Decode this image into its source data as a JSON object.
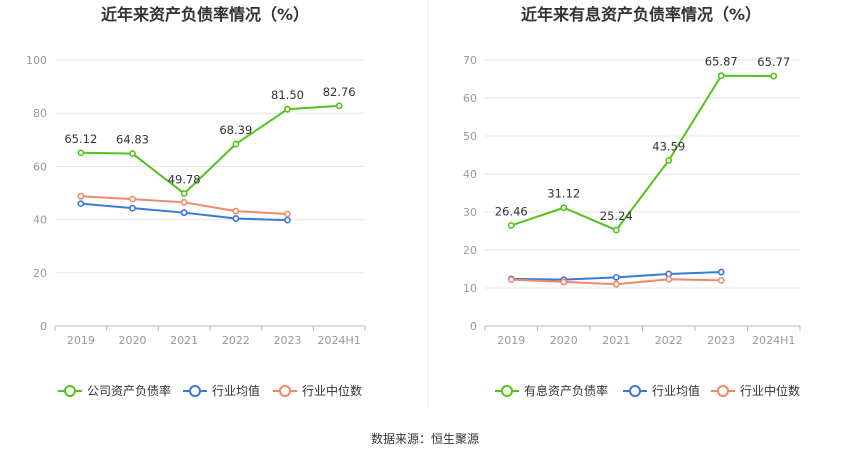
{
  "chart_data": [
    {
      "type": "line",
      "title": "近年来资产负债率情况（%）",
      "categories": [
        "2019",
        "2020",
        "2021",
        "2022",
        "2023",
        "2024H1"
      ],
      "ylim": [
        0,
        100
      ],
      "yticks": [
        "0",
        "20",
        "40",
        "60",
        "80",
        "100"
      ],
      "grid": true,
      "legend_position": "bottom",
      "series": [
        {
          "name": "公司资产负债率",
          "color": "#52c41a",
          "values": [
            65.12,
            64.83,
            49.78,
            68.39,
            81.5,
            82.76
          ],
          "labels": [
            "65.12",
            "64.83",
            "49.78",
            "68.39",
            "81.50",
            "82.76"
          ]
        },
        {
          "name": "行业均值",
          "color": "#3a78d8",
          "values": [
            46.0,
            44.3,
            42.6,
            40.4,
            39.8,
            null
          ]
        },
        {
          "name": "行业中位数",
          "color": "#f0896a",
          "values": [
            48.8,
            47.7,
            46.5,
            43.2,
            42.1,
            null
          ]
        }
      ]
    },
    {
      "type": "line",
      "title": "近年来有息资产负债率情况（%）",
      "categories": [
        "2019",
        "2020",
        "2021",
        "2022",
        "2023",
        "2024H1"
      ],
      "ylim": [
        0,
        70
      ],
      "yticks": [
        "0",
        "10",
        "20",
        "30",
        "40",
        "50",
        "60",
        "70"
      ],
      "grid": true,
      "legend_position": "bottom",
      "series": [
        {
          "name": "有息资产负债率",
          "color": "#52c41a",
          "values": [
            26.46,
            31.12,
            25.24,
            43.59,
            65.87,
            65.77
          ],
          "labels": [
            "26.46",
            "31.12",
            "25.24",
            "43.59",
            "65.87",
            "65.77"
          ]
        },
        {
          "name": "行业均值",
          "color": "#3a78d8",
          "values": [
            12.4,
            12.2,
            12.8,
            13.7,
            14.2,
            null
          ]
        },
        {
          "name": "行业中位数",
          "color": "#f0896a",
          "values": [
            12.2,
            11.6,
            11.0,
            12.3,
            12.0,
            null
          ]
        }
      ]
    }
  ],
  "source": "数据来源：恒生聚源"
}
